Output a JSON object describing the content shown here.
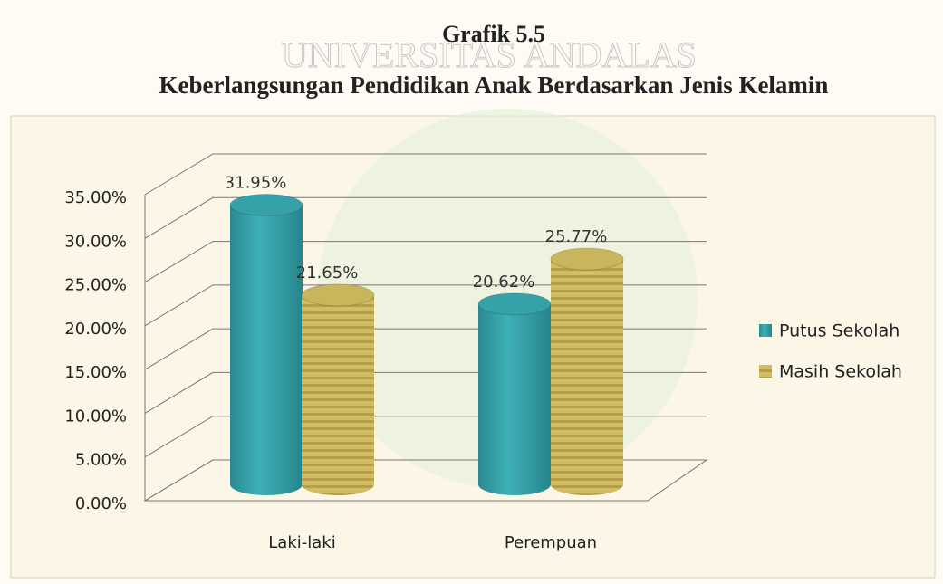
{
  "chart_data": {
    "type": "bar3d",
    "title": "Grafik 5.5",
    "subtitle": "Keberlangsungan Pendidikan Anak Berdasarkan Jenis Kelamin",
    "watermark": "UNIVERSITAS ANDALAS",
    "categories": [
      "Laki-laki",
      "Perempuan"
    ],
    "series": [
      {
        "name": "Putus Sekolah",
        "color": "#35a2aa",
        "values": [
          31.95,
          20.62
        ],
        "value_labels": [
          "31.95%",
          "20.62%"
        ]
      },
      {
        "name": "Masih Sekolah",
        "color": "#c9b55c",
        "values": [
          21.65,
          25.77
        ],
        "value_labels": [
          "21.65%",
          "25.77%"
        ]
      }
    ],
    "ylim": [
      0,
      35
    ],
    "yticks": [
      {
        "value": 0,
        "label": "0.00%"
      },
      {
        "value": 5,
        "label": "5.00%"
      },
      {
        "value": 10,
        "label": "10.00%"
      },
      {
        "value": 15,
        "label": "15.00%"
      },
      {
        "value": 20,
        "label": "20.00%"
      },
      {
        "value": 25,
        "label": "25.00%"
      },
      {
        "value": 30,
        "label": "30.00%"
      },
      {
        "value": 35,
        "label": "35.00%"
      }
    ],
    "grid": true,
    "legend": "right"
  }
}
